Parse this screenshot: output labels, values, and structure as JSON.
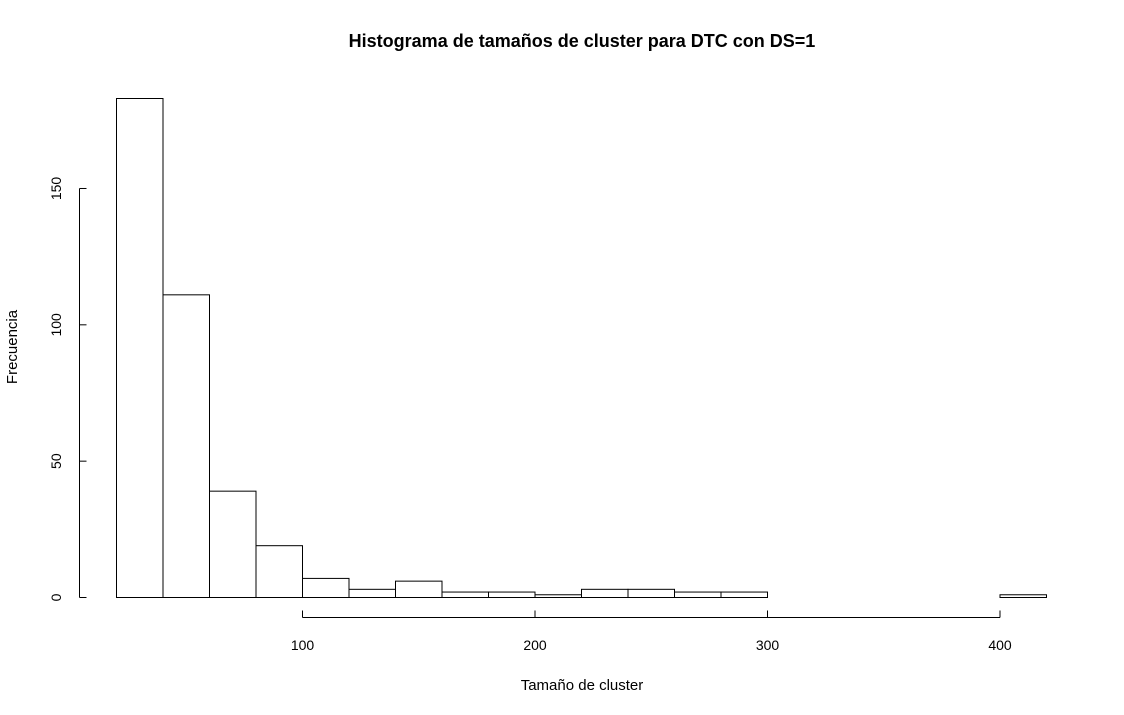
{
  "chart_data": {
    "type": "bar",
    "title": "Histograma de tamaños de cluster para DTC con DS=1",
    "xlabel": "Tamaño de cluster",
    "ylabel": "Frecuencia",
    "bin_edges": [
      20,
      40,
      60,
      80,
      100,
      120,
      140,
      160,
      180,
      200,
      220,
      240,
      260,
      280,
      300,
      320,
      340,
      360,
      380,
      400,
      420
    ],
    "values": [
      183,
      111,
      39,
      19,
      7,
      3,
      6,
      2,
      2,
      1,
      3,
      3,
      2,
      2,
      0,
      0,
      0,
      0,
      0,
      1
    ],
    "xlim": [
      20,
      420
    ],
    "ylim": [
      0,
      183
    ],
    "x_axis_range": [
      100,
      400
    ],
    "x_ticks": [
      100,
      200,
      300,
      400
    ],
    "y_ticks": [
      0,
      50,
      100,
      150
    ],
    "x_tick_labels": [
      "100",
      "200",
      "300",
      "400"
    ],
    "y_tick_labels": [
      "0",
      "50",
      "100",
      "150"
    ],
    "grid": false,
    "legend": "none"
  }
}
